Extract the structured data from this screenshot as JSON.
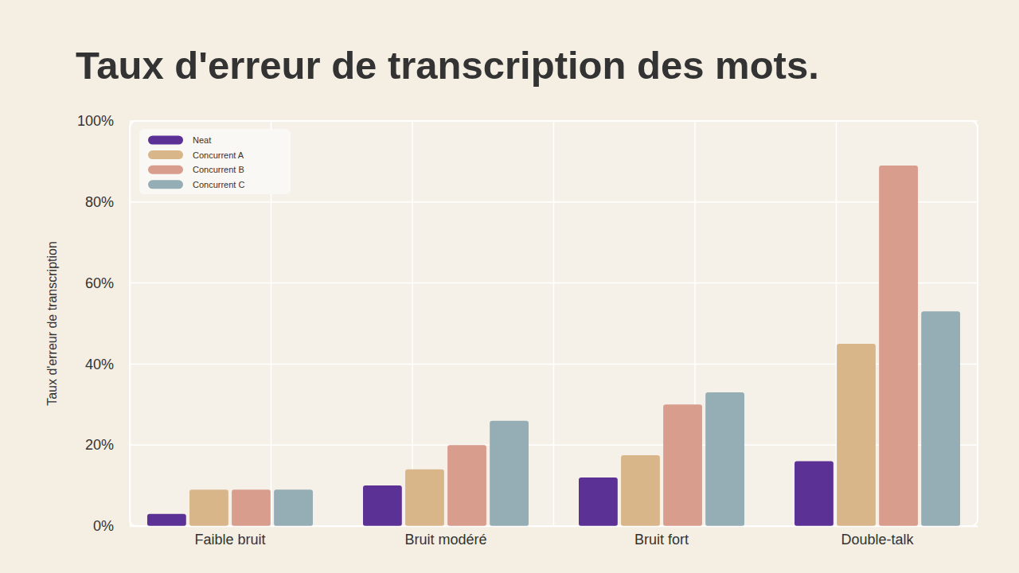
{
  "chart_data": {
    "type": "bar",
    "title": "Taux d'erreur de transcription des mots.",
    "ylabel": "Taux d'erreur de transcription",
    "categories": [
      "Faible bruit",
      "Bruit modéré",
      "Bruit fort",
      "Double-talk"
    ],
    "series": [
      {
        "name": "Neat",
        "color": "#5b3196",
        "values": [
          3,
          10,
          12,
          16
        ]
      },
      {
        "name": "Concurrent A",
        "color": "#d8b68a",
        "values": [
          9,
          14,
          17.5,
          45
        ]
      },
      {
        "name": "Concurrent B",
        "color": "#d99d8e",
        "values": [
          9,
          20,
          30,
          89
        ]
      },
      {
        "name": "Concurrent C",
        "color": "#95adb5",
        "values": [
          9,
          26,
          33,
          53
        ]
      }
    ],
    "ylim": [
      0,
      100
    ],
    "yticks": [
      {
        "value": 0,
        "label": "0%"
      },
      {
        "value": 20,
        "label": "20%"
      },
      {
        "value": 40,
        "label": "40%"
      },
      {
        "value": 60,
        "label": "60%"
      },
      {
        "value": 80,
        "label": "80%"
      },
      {
        "value": 100,
        "label": "100%"
      }
    ],
    "grid": true,
    "legend": "upper left"
  }
}
